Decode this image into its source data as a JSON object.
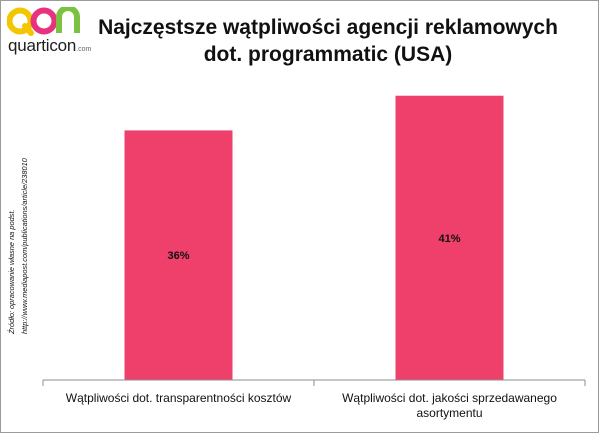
{
  "logo": {
    "name": "quarticon",
    "domain": ".com"
  },
  "source": {
    "line1": "Źródło: opracowanie własne na podst.",
    "line2": "http://www.mediapost.com/publications/article/238010"
  },
  "colors": {
    "bar": "#ef3f6b",
    "axis": "#8c8c8c"
  },
  "chart_data": {
    "type": "bar",
    "title_lines": [
      "Najczęstsze wątpliwości agencji reklamowych",
      "dot. programmatic (USA)"
    ],
    "categories": [
      [
        "Wątpliwości dot. transparentności kosztów"
      ],
      [
        "Wątpliwości dot. jakości sprzedawanego",
        "asortymentu"
      ]
    ],
    "values": [
      36,
      41
    ],
    "data_labels": [
      "36%",
      "41%"
    ],
    "ylim": [
      0,
      45
    ],
    "grid": false,
    "legend": "none"
  }
}
